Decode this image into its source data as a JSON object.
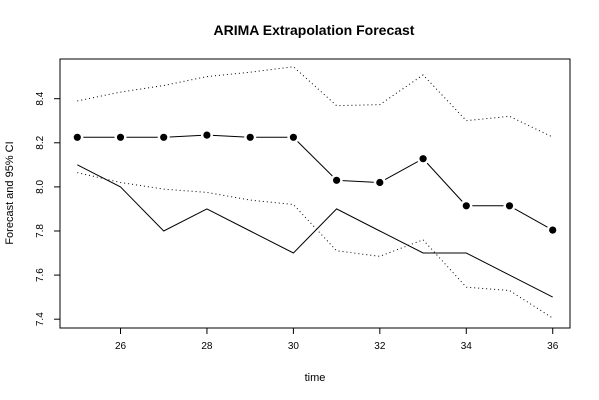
{
  "chart_data": {
    "type": "line",
    "title": "ARIMA Extrapolation Forecast",
    "xlabel": "time",
    "ylabel": "Forecast and 95% CI",
    "xlim": [
      24.6,
      36.4
    ],
    "ylim": [
      7.36,
      8.58
    ],
    "x_ticks": [
      26,
      28,
      30,
      32,
      34,
      36
    ],
    "y_ticks": [
      7.4,
      7.6,
      7.8,
      8.0,
      8.2,
      8.4
    ],
    "x_tick_labels": [
      "26",
      "28",
      "30",
      "32",
      "34",
      "36"
    ],
    "y_tick_labels": [
      "7.4",
      "7.6",
      "7.8",
      "8.0",
      "8.2",
      "8.4"
    ],
    "grid": false,
    "legend": "none",
    "x": [
      25,
      26,
      27,
      28,
      29,
      30,
      31,
      32,
      33,
      34,
      35,
      36
    ],
    "series": [
      {
        "role": "actual",
        "style": "solid",
        "color": "#000000",
        "values": [
          8.1,
          8.0,
          7.8,
          7.9,
          7.8,
          7.7,
          7.9,
          7.8,
          7.7,
          7.7,
          7.6,
          7.5
        ]
      },
      {
        "role": "forecast",
        "style": "solid-with-points",
        "color": "#000000",
        "values": [
          8.225,
          8.225,
          8.225,
          8.235,
          8.225,
          8.225,
          8.03,
          8.02,
          8.128,
          7.914,
          7.914,
          7.804
        ]
      },
      {
        "role": "upper-95-ci",
        "style": "dotted",
        "color": "#000000",
        "values": [
          8.39,
          8.43,
          8.46,
          8.5,
          8.52,
          8.545,
          8.368,
          8.373,
          8.508,
          8.3,
          8.32,
          8.226
        ]
      },
      {
        "role": "lower-95-ci",
        "style": "dotted",
        "color": "#000000",
        "values": [
          8.065,
          8.02,
          7.99,
          7.975,
          7.94,
          7.92,
          7.71,
          7.685,
          7.76,
          7.545,
          7.53,
          7.405
        ]
      }
    ]
  }
}
